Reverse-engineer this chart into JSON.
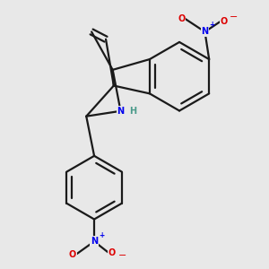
{
  "bg_color": "#e8e8e8",
  "bond_color": "#1a1a1a",
  "N_color": "#0000ee",
  "O_color": "#dd0000",
  "H_color": "#4a9a8a",
  "bond_lw": 1.6,
  "aro_lw": 0.9,
  "fs": 7.0,
  "figsize": [
    3.0,
    3.0
  ],
  "dpi": 100,
  "xlim": [
    -1.8,
    2.2
  ],
  "ylim": [
    -2.6,
    2.4
  ]
}
